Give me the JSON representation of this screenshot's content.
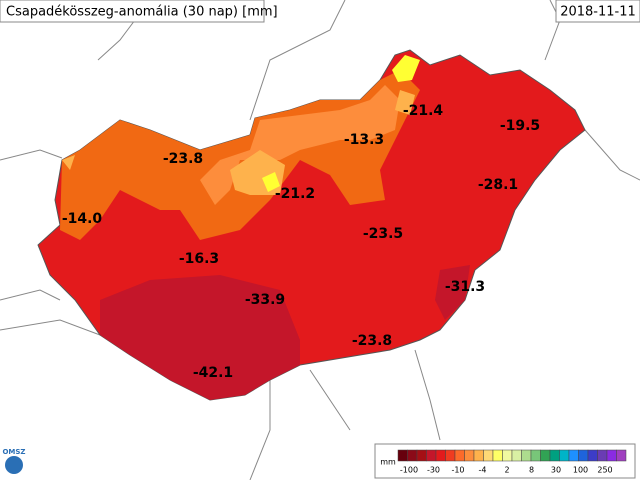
{
  "header": {
    "title": "Csapadékösszeg-anomália (30 nap) [mm]",
    "date": "2018-11-11"
  },
  "stations": [
    {
      "label": "-23.8"
    },
    {
      "label": "-21.4"
    },
    {
      "label": "-13.3"
    },
    {
      "label": "-19.5"
    },
    {
      "label": "-14.0"
    },
    {
      "label": "-21.2"
    },
    {
      "label": "-28.1"
    },
    {
      "label": "-23.5"
    },
    {
      "label": "-16.3"
    },
    {
      "label": "-31.3"
    },
    {
      "label": "-33.9"
    },
    {
      "label": "-23.8"
    },
    {
      "label": "-42.1"
    }
  ],
  "legend": {
    "unit": "mm",
    "ticks": [
      "-100",
      "-30",
      "-10",
      "-4",
      "2",
      "8",
      "30",
      "100",
      "250"
    ]
  },
  "logo": "OMSZ"
}
